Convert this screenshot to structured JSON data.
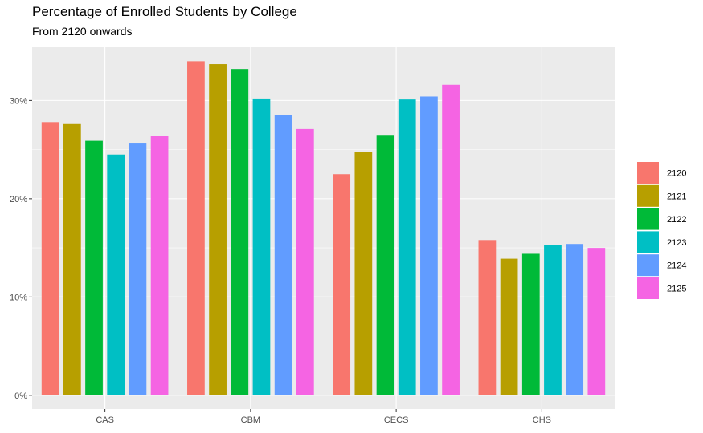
{
  "chart_data": {
    "type": "bar",
    "title": "Percentage of Enrolled Students by College",
    "subtitle": "From 2120 onwards",
    "xlabel": "",
    "ylabel": "",
    "categories": [
      "CAS",
      "CBM",
      "CECS",
      "CHS"
    ],
    "series": [
      {
        "name": "2120",
        "color": "#F8766D",
        "values": [
          27.8,
          34.0,
          22.5,
          15.8
        ]
      },
      {
        "name": "2121",
        "color": "#B79F00",
        "values": [
          27.6,
          33.7,
          24.8,
          13.9
        ]
      },
      {
        "name": "2122",
        "color": "#00BA38",
        "values": [
          25.9,
          33.2,
          26.5,
          14.4
        ]
      },
      {
        "name": "2123",
        "color": "#00BFC4",
        "values": [
          24.5,
          30.2,
          30.1,
          15.3
        ]
      },
      {
        "name": "2124",
        "color": "#619CFF",
        "values": [
          25.7,
          28.5,
          30.4,
          15.4
        ]
      },
      {
        "name": "2125",
        "color": "#F564E3",
        "values": [
          26.4,
          27.1,
          31.6,
          15.0
        ]
      }
    ],
    "ylim": [
      -1.4,
      35.5
    ],
    "yticks": [
      0,
      10,
      20,
      30
    ],
    "ytick_labels": [
      "0%",
      "10%",
      "20%",
      "30%"
    ],
    "grid": true,
    "legend_position": "right"
  }
}
